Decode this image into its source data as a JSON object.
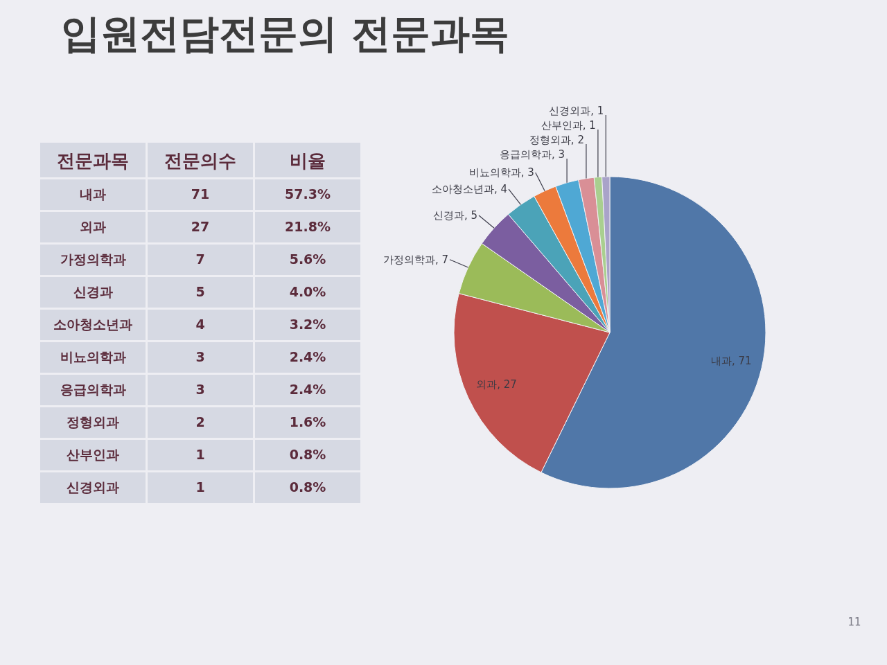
{
  "chart_data": [
    {
      "type": "other",
      "title": "입원전담전문의 전문과목",
      "annotations": [
        "전문과목"
      ],
      "categories": [
        "내과",
        "외과",
        "가정의학과",
        "신경과",
        "소아청소년과",
        "비뇨의학과",
        "응급의학과",
        "정형외과",
        "산부인과",
        "신경외과"
      ],
      "data_labels": true,
      "series": [
        {
          "name": "전문의수",
          "values": [
            71,
            27,
            7,
            5,
            4,
            3,
            3,
            2,
            1,
            1
          ]
        },
        {
          "name": "비율",
          "values": [
            57.3,
            21.8,
            5.6,
            4.0,
            3.2,
            2.4,
            2.4,
            1.6,
            0.8,
            0.8
          ],
          "value_labels": [
            "57.3%",
            "21.8%",
            "5.6%",
            "4.0%",
            "3.2%",
            "2.4%",
            "2.4%",
            "1.6%",
            "0.8%",
            "0.8%"
          ]
        }
      ]
    },
    {
      "type": "pie",
      "values": [
        71,
        27,
        7,
        5,
        4,
        3,
        3,
        2,
        1,
        1
      ],
      "colors": [
        "#5077a8",
        "#c0504d",
        "#9bbb59",
        "#7b5ea0",
        "#4ba3b8",
        "#ec7a3c",
        "#4fa8d4",
        "#d98f96",
        "#a9cf8f",
        "#a9a3c9"
      ],
      "value_labels": [
        "내과, 71",
        "외과, 27",
        "가정의학과, 7",
        "신경과, 5",
        "소아청소년과, 4",
        "비뇨의학과, 3",
        "응급의학과, 3",
        "정형외과, 2",
        "산부인과, 1",
        "신경외과, 1"
      ],
      "annotations": [
        "11"
      ]
    }
  ]
}
